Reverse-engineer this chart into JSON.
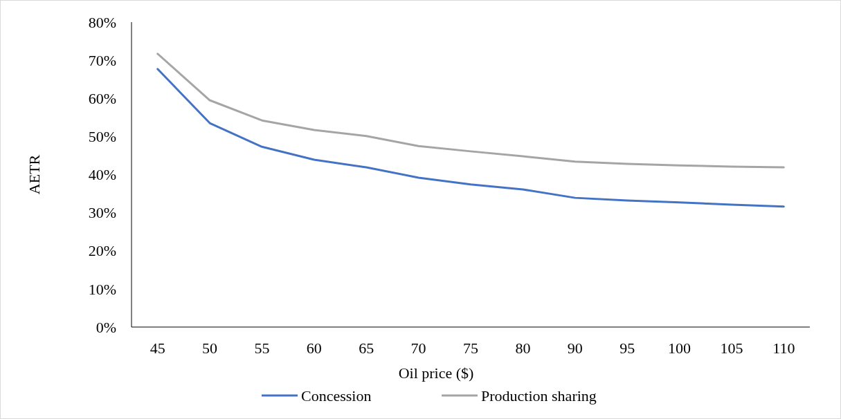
{
  "chart_data": {
    "type": "line",
    "xlabel": "Oil price ($)",
    "ylabel": "AETR",
    "categories": [
      "45",
      "50",
      "55",
      "60",
      "65",
      "70",
      "75",
      "80",
      "90",
      "95",
      "100",
      "105",
      "110"
    ],
    "series": [
      {
        "name": "Concession",
        "color": "#4472c4",
        "values": [
          67.7,
          53.5,
          47.3,
          43.9,
          41.9,
          39.2,
          37.4,
          36.1,
          33.9,
          33.2,
          32.7,
          32.1,
          31.6
        ]
      },
      {
        "name": "Production sharing",
        "color": "#a5a5a5",
        "values": [
          71.7,
          59.5,
          54.2,
          51.7,
          50.1,
          47.5,
          46.1,
          44.8,
          43.4,
          42.8,
          42.4,
          42.1,
          41.9
        ]
      }
    ],
    "ylim": [
      0,
      80
    ],
    "yticks": [
      {
        "value": 0,
        "label": "0%"
      },
      {
        "value": 10,
        "label": "10%"
      },
      {
        "value": 20,
        "label": "20%"
      },
      {
        "value": 30,
        "label": "30%"
      },
      {
        "value": 40,
        "label": "40%"
      },
      {
        "value": 50,
        "label": "50%"
      },
      {
        "value": 60,
        "label": "60%"
      },
      {
        "value": 70,
        "label": "70%"
      },
      {
        "value": 80,
        "label": "80%"
      }
    ],
    "grid": false,
    "legend": "bottom",
    "marker": "none",
    "line_style": "solid"
  }
}
